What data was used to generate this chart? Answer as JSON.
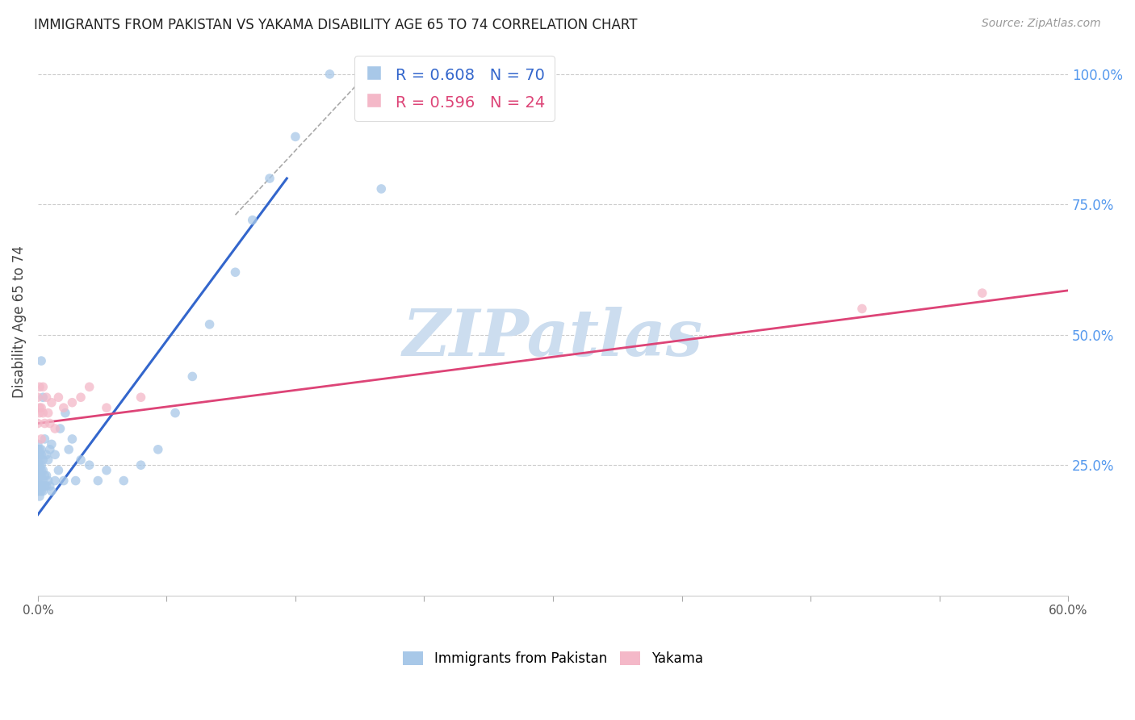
{
  "title": "IMMIGRANTS FROM PAKISTAN VS YAKAMA DISABILITY AGE 65 TO 74 CORRELATION CHART",
  "source": "Source: ZipAtlas.com",
  "ylabel": "Disability Age 65 to 74",
  "watermark": "ZIPatlas",
  "legend_line1": "R = 0.608   N = 70",
  "legend_line2": "R = 0.596   N = 24",
  "legend_label1": "Immigrants from Pakistan",
  "legend_label2": "Yakama",
  "blue_color": "#a8c8e8",
  "pink_color": "#f4b8c8",
  "blue_line_color": "#3366cc",
  "pink_line_color": "#dd4477",
  "right_axis_color": "#5599ee",
  "grid_color": "#cccccc",
  "watermark_color": "#ccddef",
  "title_fontsize": 12,
  "source_fontsize": 10,
  "xlim": [
    0.0,
    0.6
  ],
  "ylim": [
    0.0,
    1.05
  ],
  "blue_line_x": [
    0.0,
    0.145
  ],
  "blue_line_y": [
    0.155,
    0.8
  ],
  "pink_line_x": [
    0.0,
    0.6
  ],
  "pink_line_y": [
    0.33,
    0.585
  ],
  "ref_line_x": [
    0.115,
    0.2
  ],
  "ref_line_y": [
    0.73,
    1.03
  ],
  "blue_x": [
    0.0,
    0.0,
    0.0,
    0.0,
    0.0,
    0.0,
    0.0,
    0.0,
    0.0,
    0.0,
    0.001,
    0.001,
    0.001,
    0.001,
    0.001,
    0.001,
    0.001,
    0.001,
    0.001,
    0.001,
    0.002,
    0.002,
    0.002,
    0.002,
    0.002,
    0.002,
    0.002,
    0.002,
    0.003,
    0.003,
    0.003,
    0.003,
    0.003,
    0.004,
    0.004,
    0.004,
    0.005,
    0.005,
    0.005,
    0.006,
    0.006,
    0.007,
    0.007,
    0.008,
    0.008,
    0.01,
    0.01,
    0.012,
    0.013,
    0.015,
    0.016,
    0.018,
    0.02,
    0.022,
    0.025,
    0.03,
    0.035,
    0.04,
    0.05,
    0.06,
    0.07,
    0.08,
    0.09,
    0.1,
    0.115,
    0.125,
    0.135,
    0.15,
    0.17,
    0.2
  ],
  "blue_y": [
    0.2,
    0.21,
    0.22,
    0.23,
    0.24,
    0.25,
    0.26,
    0.27,
    0.28,
    0.29,
    0.19,
    0.2,
    0.21,
    0.22,
    0.23,
    0.24,
    0.25,
    0.26,
    0.27,
    0.28,
    0.2,
    0.21,
    0.23,
    0.24,
    0.25,
    0.27,
    0.28,
    0.45,
    0.2,
    0.22,
    0.24,
    0.26,
    0.38,
    0.21,
    0.23,
    0.3,
    0.21,
    0.23,
    0.27,
    0.22,
    0.26,
    0.21,
    0.28,
    0.2,
    0.29,
    0.22,
    0.27,
    0.24,
    0.32,
    0.22,
    0.35,
    0.28,
    0.3,
    0.22,
    0.26,
    0.25,
    0.22,
    0.24,
    0.22,
    0.25,
    0.28,
    0.35,
    0.42,
    0.52,
    0.62,
    0.72,
    0.8,
    0.88,
    1.0,
    0.78
  ],
  "pink_x": [
    0.0,
    0.0,
    0.001,
    0.001,
    0.001,
    0.002,
    0.002,
    0.003,
    0.003,
    0.004,
    0.005,
    0.006,
    0.007,
    0.008,
    0.01,
    0.012,
    0.015,
    0.02,
    0.025,
    0.03,
    0.04,
    0.06,
    0.48,
    0.55
  ],
  "pink_y": [
    0.33,
    0.38,
    0.35,
    0.4,
    0.36,
    0.3,
    0.36,
    0.35,
    0.4,
    0.33,
    0.38,
    0.35,
    0.33,
    0.37,
    0.32,
    0.38,
    0.36,
    0.37,
    0.38,
    0.4,
    0.36,
    0.38,
    0.55,
    0.58
  ],
  "x_tick_positions": [
    0.0,
    0.075,
    0.15,
    0.225,
    0.3,
    0.375,
    0.45,
    0.525,
    0.6
  ],
  "right_ytick_positions": [
    0.25,
    0.5,
    0.75,
    1.0
  ],
  "right_ytick_labels": [
    "25.0%",
    "50.0%",
    "75.0%",
    "100.0%"
  ],
  "dot_size": 70
}
